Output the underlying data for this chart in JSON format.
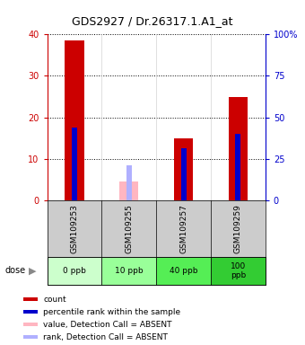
{
  "title": "GDS2927 / Dr.26317.1.A1_at",
  "samples": [
    "GSM109253",
    "GSM109255",
    "GSM109257",
    "GSM109259"
  ],
  "doses": [
    "0 ppb",
    "10 ppb",
    "40 ppb",
    "100\nppb"
  ],
  "count_values": [
    38.5,
    0,
    15.0,
    25.0
  ],
  "rank_values": [
    17.5,
    0,
    12.5,
    16.0
  ],
  "absent_value_values": [
    0,
    4.5,
    0,
    0
  ],
  "absent_rank_values": [
    0,
    8.5,
    0,
    0
  ],
  "bar_width": 0.35,
  "rank_bar_width": 0.1,
  "ylim_left": [
    0,
    40
  ],
  "ylim_right": [
    0,
    100
  ],
  "left_ticks": [
    0,
    10,
    20,
    30,
    40
  ],
  "right_ticks": [
    0,
    25,
    50,
    75,
    100
  ],
  "left_tick_labels": [
    "0",
    "10",
    "20",
    "30",
    "40"
  ],
  "right_tick_labels": [
    "0",
    "25",
    "50",
    "75",
    "100%"
  ],
  "count_color": "#cc0000",
  "rank_color": "#0000cc",
  "absent_value_color": "#ffb6c1",
  "absent_rank_color": "#b0b0ff",
  "sample_bg_color": "#cccccc",
  "dose_colors": [
    "#ccffcc",
    "#99ff99",
    "#55ee55",
    "#33cc33"
  ],
  "legend_items": [
    {
      "color": "#cc0000",
      "label": "count"
    },
    {
      "color": "#0000cc",
      "label": "percentile rank within the sample"
    },
    {
      "color": "#ffb6c1",
      "label": "value, Detection Call = ABSENT"
    },
    {
      "color": "#b0b0ff",
      "label": "rank, Detection Call = ABSENT"
    }
  ],
  "left_axis_color": "#cc0000",
  "right_axis_color": "#0000cc"
}
